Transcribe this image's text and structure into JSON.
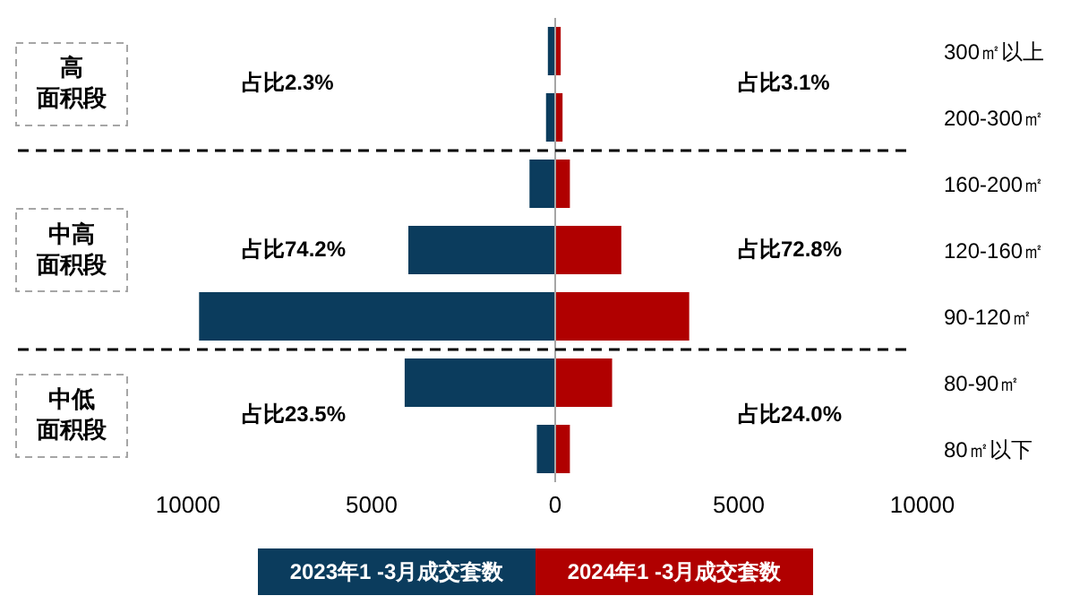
{
  "chart_data": {
    "type": "bar",
    "orientation": "horizontal",
    "stacked": true,
    "categories": [
      "300㎡以上",
      "200-300㎡",
      "160-200㎡",
      "120-160㎡",
      "90-120㎡",
      "80-90㎡",
      "80㎡以下"
    ],
    "series": [
      {
        "name": "2023年1 -3月成交套数",
        "color": "#0b3c5d",
        "values": [
          -200,
          -250,
          -700,
          -4000,
          -9700,
          -4100,
          -500
        ]
      },
      {
        "name": "2024年1 -3月成交套数",
        "color": "#b00000",
        "values": [
          150,
          200,
          400,
          1800,
          3650,
          1550,
          400
        ]
      }
    ],
    "xlim": [
      -10000,
      10000
    ],
    "xticks": [
      {
        "value": -10000,
        "label": "10000"
      },
      {
        "value": -5000,
        "label": "5000"
      },
      0,
      5000,
      10000
    ],
    "ref_lines": [
      {
        "axis": "x",
        "value": 0,
        "color": "#a6a6a6"
      }
    ],
    "annotations": [
      "高面积段",
      "占比2.3%",
      "占比3.1%",
      "中高面积段",
      "占比74.2%",
      "占比72.8%",
      "中低面积段",
      "占比23.5%",
      "占比24.0%"
    ],
    "legend": "bottom"
  }
}
